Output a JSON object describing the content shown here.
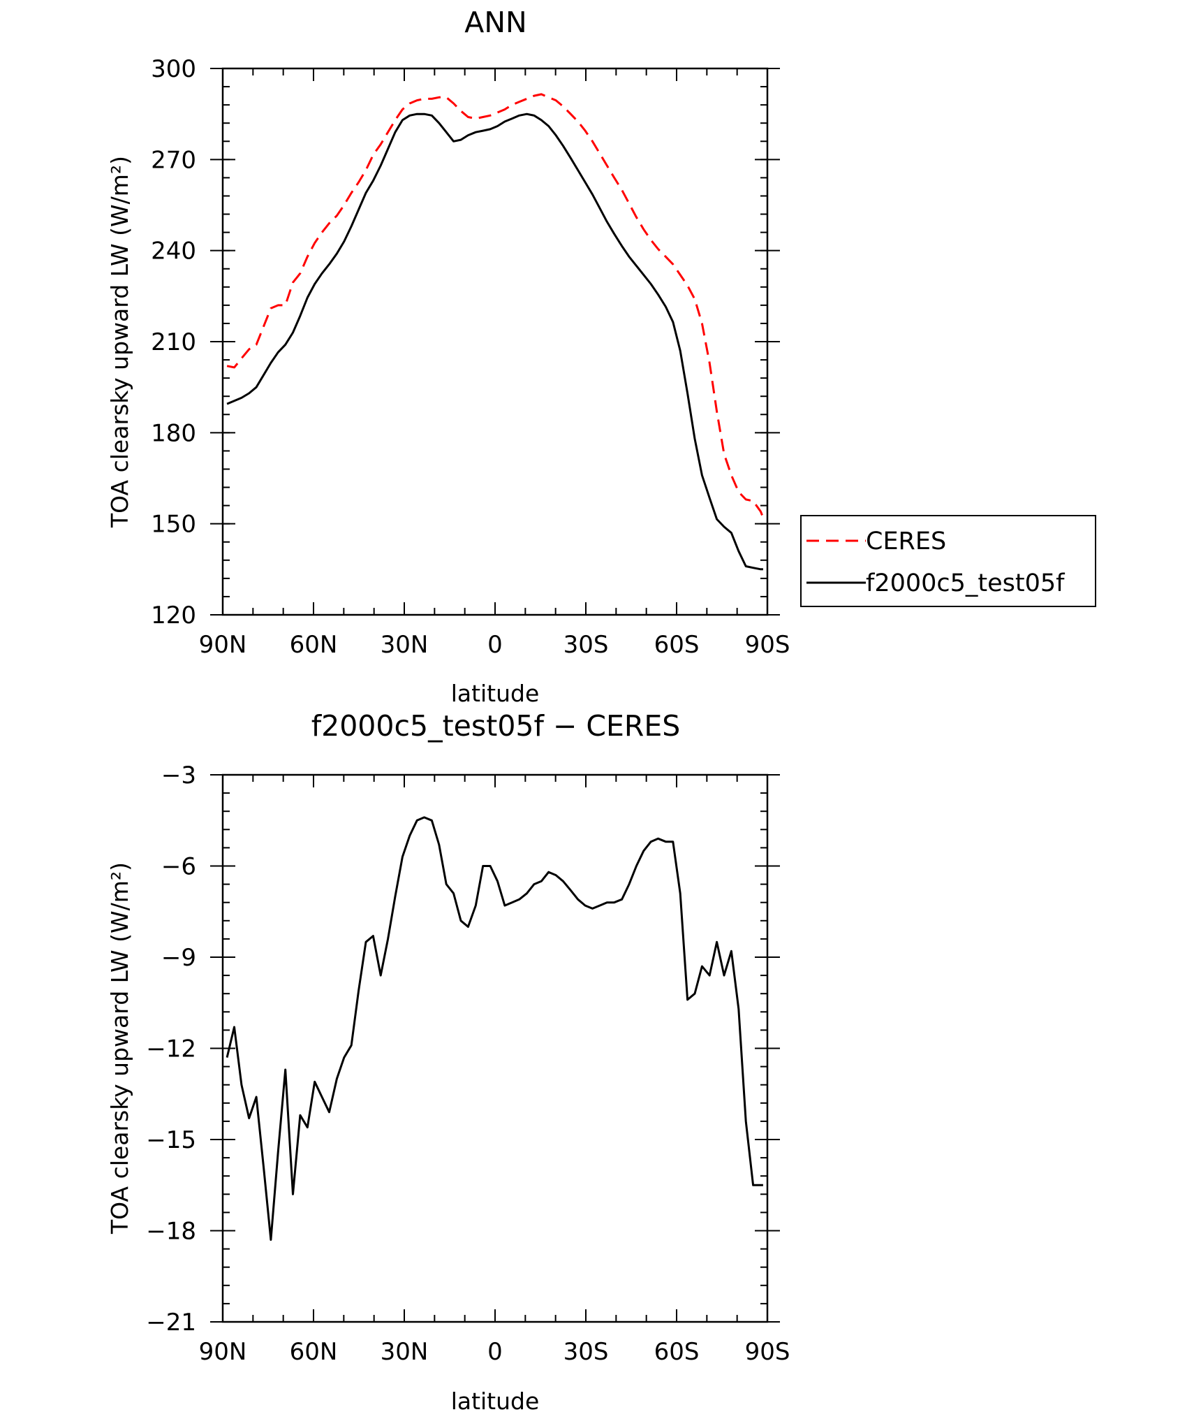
{
  "chart_data": [
    {
      "type": "line",
      "title": "ANN",
      "xlabel": "latitude",
      "ylabel": "TOA clearsky upward LW (W/m²)",
      "xlim": [
        90,
        -90
      ],
      "ylim": [
        120,
        300
      ],
      "x_ticks": [
        90,
        60,
        30,
        0,
        -30,
        -60,
        -90
      ],
      "x_tick_labels": [
        "90N",
        "60N",
        "30N",
        "0",
        "30S",
        "60S",
        "90S"
      ],
      "y_ticks": [
        120,
        150,
        180,
        210,
        240,
        270,
        300
      ],
      "y_tick_labels": [
        "120",
        "150",
        "180",
        "210",
        "240",
        "270",
        "300"
      ],
      "legend_position": "right",
      "series": [
        {
          "name": "CERES",
          "color": "#ff0000",
          "dash": "dashed",
          "x": [
            88.6,
            86.2,
            83.8,
            81.3,
            78.9,
            76.5,
            74.1,
            71.7,
            69.3,
            66.8,
            64.4,
            62.0,
            59.6,
            57.2,
            54.8,
            52.3,
            49.9,
            47.5,
            45.1,
            42.7,
            40.3,
            37.8,
            35.4,
            33.0,
            30.6,
            28.2,
            25.8,
            23.4,
            20.9,
            18.5,
            16.1,
            13.7,
            11.3,
            8.9,
            6.4,
            4.0,
            1.6,
            -0.8,
            -3.2,
            -5.6,
            -8.0,
            -10.5,
            -12.9,
            -15.3,
            -17.7,
            -20.1,
            -22.5,
            -25.0,
            -27.4,
            -29.8,
            -32.2,
            -34.6,
            -37.0,
            -39.4,
            -41.9,
            -44.3,
            -46.7,
            -49.1,
            -51.5,
            -53.9,
            -56.4,
            -58.8,
            -61.2,
            -63.6,
            -66.0,
            -68.4,
            -70.9,
            -73.3,
            -75.7,
            -78.1,
            -80.5,
            -82.9,
            -85.3,
            -87.8,
            -88.6
          ],
          "values": [
            202.0,
            201.5,
            204.5,
            207.5,
            209.0,
            215.0,
            221.0,
            222.0,
            222.0,
            229.5,
            232.5,
            238.0,
            242.5,
            246.0,
            249.0,
            251.5,
            255.0,
            259.0,
            262.5,
            266.5,
            271.5,
            275.0,
            279.0,
            283.0,
            286.5,
            288.5,
            289.5,
            290.0,
            290.0,
            290.5,
            290.5,
            288.5,
            286.0,
            284.0,
            283.5,
            284.0,
            284.5,
            285.5,
            286.5,
            288.0,
            289.0,
            290.0,
            291.0,
            291.5,
            290.5,
            289.5,
            287.5,
            285.0,
            282.5,
            279.5,
            276.0,
            272.0,
            268.0,
            264.0,
            260.0,
            255.5,
            251.0,
            247.0,
            243.5,
            240.5,
            238.0,
            235.5,
            232.0,
            228.5,
            224.0,
            216.0,
            203.0,
            187.0,
            173.0,
            166.0,
            160.5,
            158.0,
            157.5,
            154.0,
            152.0
          ]
        },
        {
          "name": "f2000c5_test05f",
          "color": "#000000",
          "dash": "solid",
          "x": [
            88.6,
            86.2,
            83.8,
            81.3,
            78.9,
            76.5,
            74.1,
            71.7,
            69.3,
            66.8,
            64.4,
            62.0,
            59.6,
            57.2,
            54.8,
            52.3,
            49.9,
            47.5,
            45.1,
            42.7,
            40.3,
            37.8,
            35.4,
            33.0,
            30.6,
            28.2,
            25.8,
            23.4,
            20.9,
            18.5,
            16.1,
            13.7,
            11.3,
            8.9,
            6.4,
            4.0,
            1.6,
            -0.8,
            -3.2,
            -5.6,
            -8.0,
            -10.5,
            -12.9,
            -15.3,
            -17.7,
            -20.1,
            -22.5,
            -25.0,
            -27.4,
            -29.8,
            -32.2,
            -34.6,
            -37.0,
            -39.4,
            -41.9,
            -44.3,
            -46.7,
            -49.1,
            -51.5,
            -53.9,
            -56.4,
            -58.8,
            -61.2,
            -63.6,
            -66.0,
            -68.4,
            -70.9,
            -73.3,
            -75.7,
            -78.1,
            -80.5,
            -82.9,
            -85.3,
            -87.8,
            -88.6
          ],
          "values": [
            189.5,
            190.5,
            191.5,
            193.0,
            195.0,
            199.0,
            203.0,
            206.5,
            209.0,
            213.0,
            218.5,
            224.5,
            229.0,
            232.5,
            235.5,
            239.0,
            243.0,
            248.0,
            253.5,
            259.0,
            263.0,
            268.0,
            273.5,
            279.0,
            283.0,
            284.5,
            285.0,
            285.0,
            284.5,
            282.0,
            279.0,
            276.0,
            276.5,
            278.0,
            279.0,
            279.5,
            280.0,
            281.0,
            282.5,
            283.5,
            284.5,
            285.0,
            284.5,
            283.0,
            281.0,
            278.0,
            274.5,
            270.5,
            266.5,
            262.5,
            258.5,
            254.0,
            249.5,
            245.5,
            241.5,
            238.0,
            235.0,
            232.0,
            229.0,
            225.5,
            221.5,
            216.5,
            207.0,
            193.0,
            178.0,
            166.0,
            158.5,
            151.5,
            149.0,
            147.0,
            141.0,
            136.0,
            135.5,
            135.0,
            135.0
          ]
        }
      ]
    },
    {
      "type": "line",
      "title": "f2000c5_test05f − CERES",
      "xlabel": "latitude",
      "ylabel": "TOA clearsky upward LW (W/m²)",
      "xlim": [
        90,
        -90
      ],
      "ylim": [
        -21,
        -3
      ],
      "x_ticks": [
        90,
        60,
        30,
        0,
        -30,
        -60,
        -90
      ],
      "x_tick_labels": [
        "90N",
        "60N",
        "30N",
        "0",
        "30S",
        "60S",
        "90S"
      ],
      "y_ticks": [
        -21,
        -18,
        -15,
        -12,
        -9,
        -6,
        -3
      ],
      "y_tick_labels": [
        "−21",
        "−18",
        "−15",
        "−12",
        "−9",
        "−6",
        "−3"
      ],
      "series": [
        {
          "color": "#000000",
          "dash": "solid",
          "x": [
            88.6,
            86.2,
            83.8,
            81.3,
            78.9,
            76.5,
            74.1,
            71.7,
            69.3,
            66.8,
            64.4,
            62.0,
            59.6,
            57.2,
            54.8,
            52.3,
            49.9,
            47.5,
            45.1,
            42.7,
            40.3,
            37.8,
            35.4,
            33.0,
            30.6,
            28.2,
            25.8,
            23.4,
            20.9,
            18.5,
            16.1,
            13.7,
            11.3,
            8.9,
            6.4,
            4.0,
            1.6,
            -0.8,
            -3.2,
            -5.6,
            -8.0,
            -10.5,
            -12.9,
            -15.3,
            -17.7,
            -20.1,
            -22.5,
            -25.0,
            -27.4,
            -29.8,
            -32.2,
            -34.6,
            -37.0,
            -39.4,
            -41.9,
            -44.3,
            -46.7,
            -49.1,
            -51.5,
            -53.9,
            -56.4,
            -58.8,
            -61.2,
            -63.6,
            -66.0,
            -68.4,
            -70.9,
            -73.3,
            -75.7,
            -78.1,
            -80.5,
            -82.9,
            -85.3,
            -87.8,
            -88.6
          ],
          "values": [
            -12.3,
            -11.3,
            -13.2,
            -14.3,
            -13.6,
            -15.9,
            -18.3,
            -15.4,
            -12.7,
            -16.8,
            -14.2,
            -14.6,
            -13.1,
            -13.6,
            -14.1,
            -13.0,
            -12.3,
            -11.9,
            -10.1,
            -8.5,
            -8.3,
            -9.6,
            -8.4,
            -7.0,
            -5.7,
            -5.0,
            -4.5,
            -4.4,
            -4.5,
            -5.3,
            -6.6,
            -6.9,
            -7.8,
            -8.0,
            -7.3,
            -6.0,
            -6.0,
            -6.5,
            -7.3,
            -7.2,
            -7.1,
            -6.9,
            -6.6,
            -6.5,
            -6.2,
            -6.3,
            -6.5,
            -6.8,
            -7.1,
            -7.3,
            -7.4,
            -7.3,
            -7.2,
            -7.2,
            -7.1,
            -6.6,
            -6.0,
            -5.5,
            -5.2,
            -5.1,
            -5.2,
            -5.2,
            -6.9,
            -10.4,
            -10.2,
            -9.3,
            -9.6,
            -8.5,
            -9.6,
            -8.8,
            -10.7,
            -14.4,
            -16.5,
            -16.5,
            -16.5
          ]
        }
      ]
    }
  ]
}
